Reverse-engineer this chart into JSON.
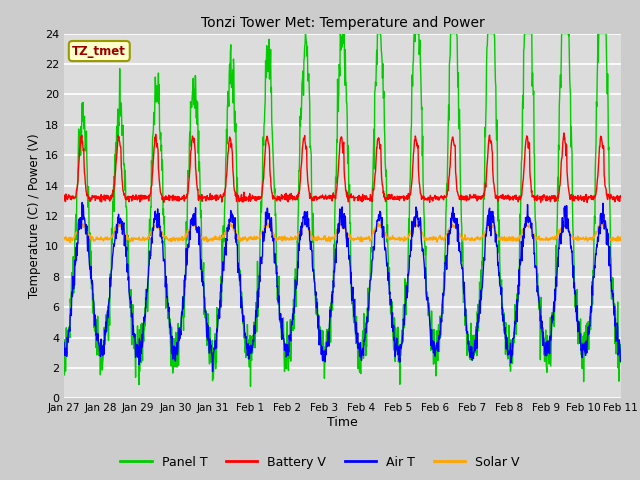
{
  "title": "Tonzi Tower Met: Temperature and Power",
  "xlabel": "Time",
  "ylabel": "Temperature (C) / Power (V)",
  "timezone_label": "TZ_tmet",
  "ylim": [
    0,
    24
  ],
  "yticks": [
    0,
    2,
    4,
    6,
    8,
    10,
    12,
    14,
    16,
    18,
    20,
    22,
    24
  ],
  "xtick_labels": [
    "Jan 27",
    "Jan 28",
    "Jan 29",
    "Jan 30",
    "Jan 31",
    "Feb 1",
    "Feb 2",
    "Feb 3",
    "Feb 4",
    "Feb 5",
    "Feb 6",
    "Feb 7",
    "Feb 8",
    "Feb 9",
    "Feb 10",
    "Feb 11"
  ],
  "colors": {
    "panel_t": "#00CC00",
    "battery_v": "#FF0000",
    "air_t": "#0000FF",
    "solar_v": "#FFA500"
  },
  "legend_labels": [
    "Panel T",
    "Battery V",
    "Air T",
    "Solar V"
  ],
  "fig_bg": "#CCCCCC",
  "plot_bg": "#DCDCDC"
}
